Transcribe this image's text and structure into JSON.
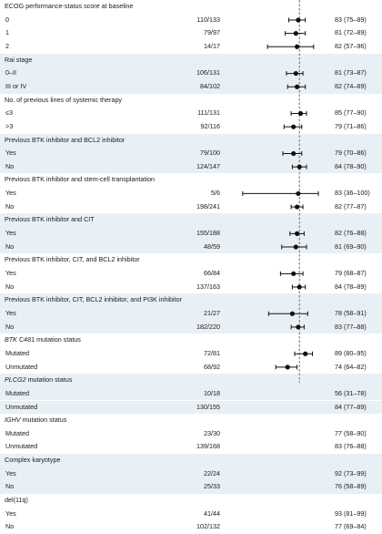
{
  "chart_data": {
    "type": "forest",
    "xlim": [
      0,
      100
    ],
    "reference_line": 84,
    "rows": [
      {
        "label": "ECOG performance-status score at baseline",
        "header": true
      },
      {
        "label": "0",
        "n": "110/133",
        "est": 83,
        "lo": 75,
        "hi": 89,
        "text": "83 (75–89)"
      },
      {
        "label": "1",
        "n": "79/97",
        "est": 81,
        "lo": 72,
        "hi": 89,
        "text": "81 (72–89)"
      },
      {
        "label": "2",
        "n": "14/17",
        "est": 82,
        "lo": 57,
        "hi": 96,
        "text": "82 (57–96)"
      },
      {
        "label": "Rai stage",
        "header": true
      },
      {
        "label": "0–II",
        "n": "106/131",
        "est": 81,
        "lo": 73,
        "hi": 87,
        "text": "81 (73–87)"
      },
      {
        "label": "III or IV",
        "n": "84/102",
        "est": 82,
        "lo": 74,
        "hi": 89,
        "text": "82 (74–89)"
      },
      {
        "label": "No. of previous lines of systemic therapy",
        "header": true
      },
      {
        "label": "≤3",
        "n": "111/131",
        "est": 85,
        "lo": 77,
        "hi": 90,
        "text": "85 (77–90)"
      },
      {
        "label": ">3",
        "n": "92/116",
        "est": 79,
        "lo": 71,
        "hi": 86,
        "text": "79 (71–86)"
      },
      {
        "label": "Previous BTK inhibitor and BCL2 inhibitor",
        "header": true
      },
      {
        "label": "Yes",
        "n": "79/100",
        "est": 79,
        "lo": 70,
        "hi": 86,
        "text": "79 (70–86)"
      },
      {
        "label": "No",
        "n": "124/147",
        "est": 84,
        "lo": 78,
        "hi": 90,
        "text": "84 (78–90)"
      },
      {
        "label": "Previous BTK inhibitor and stem-cell transplantation",
        "header": true
      },
      {
        "label": "Yes",
        "n": "5/6",
        "est": 83,
        "lo": 36,
        "hi": 100,
        "text": "83 (36–100)"
      },
      {
        "label": "No",
        "n": "198/241",
        "est": 82,
        "lo": 77,
        "hi": 87,
        "text": "82 (77–87)"
      },
      {
        "label": "Previous BTK inhibitor and CIT",
        "header": true
      },
      {
        "label": "Yes",
        "n": "155/188",
        "est": 82,
        "lo": 76,
        "hi": 88,
        "text": "82 (76–88)"
      },
      {
        "label": "No",
        "n": "48/59",
        "est": 81,
        "lo": 69,
        "hi": 90,
        "text": "81 (69–90)"
      },
      {
        "label": "Previous BTK inhibitor, CIT, and BCL2 inhibitor",
        "header": true
      },
      {
        "label": "Yes",
        "n": "66/84",
        "est": 79,
        "lo": 68,
        "hi": 87,
        "text": "79 (68–87)"
      },
      {
        "label": "No",
        "n": "137/163",
        "est": 84,
        "lo": 78,
        "hi": 89,
        "text": "84 (78–89)"
      },
      {
        "label": "Previous BTK inhibitor, CIT, BCL2 inhibitor, and PI3K inhibitor",
        "header": true
      },
      {
        "label": "Yes",
        "n": "21/27",
        "est": 78,
        "lo": 58,
        "hi": 91,
        "text": "78 (58–91)"
      },
      {
        "label": "No",
        "n": "182/220",
        "est": 83,
        "lo": 77,
        "hi": 88,
        "text": "83 (77–88)"
      },
      {
        "label": "BTK C481 mutation status",
        "header": true,
        "italic_prefix": "BTK"
      },
      {
        "label": "Mutated",
        "n": "72/81",
        "est": 89,
        "lo": 80,
        "hi": 95,
        "text": "89 (80–95)"
      },
      {
        "label": "Unmutated",
        "n": "68/92",
        "est": 74,
        "lo": 64,
        "hi": 82,
        "text": "74 (64–82)"
      },
      {
        "label": "PLCG2 mutation status",
        "header": true,
        "italic_prefix": "PLCG2"
      },
      {
        "label": "Mutated",
        "n": "10/18",
        "est": 56,
        "lo": 31,
        "hi": 78,
        "text": "56 (31–78)"
      },
      {
        "label": "Unmutated",
        "n": "130/155",
        "est": 84,
        "lo": 77,
        "hi": 89,
        "text": "84 (77–89)"
      },
      {
        "label": "IGHV mutation status",
        "header": true,
        "italic_prefix": "IGHV"
      },
      {
        "label": "Mutated",
        "n": "23/30",
        "est": 77,
        "lo": 58,
        "hi": 90,
        "text": "77 (58–90)"
      },
      {
        "label": "Unmutated",
        "n": "139/168",
        "est": 83,
        "lo": 76,
        "hi": 88,
        "text": "83 (76–88)"
      },
      {
        "label": "Complex karyotype",
        "header": true
      },
      {
        "label": "Yes",
        "n": "22/24",
        "est": 92,
        "lo": 73,
        "hi": 99,
        "text": "92 (73–99)"
      },
      {
        "label": "No",
        "n": "25/33",
        "est": 76,
        "lo": 58,
        "hi": 89,
        "text": "76 (58–89)"
      },
      {
        "label": "del(11q)",
        "header": true
      },
      {
        "label": "Yes",
        "n": "41/44",
        "est": 93,
        "lo": 81,
        "hi": 99,
        "text": "93 (81–99)"
      },
      {
        "label": "No",
        "n": "102/132",
        "est": 77,
        "lo": 69,
        "hi": 84,
        "text": "77 (69–84)"
      }
    ]
  },
  "colors": {
    "band": "#e8f0f6",
    "text": "#1a1a1a",
    "marker": "#111111",
    "reference": "#555555"
  }
}
